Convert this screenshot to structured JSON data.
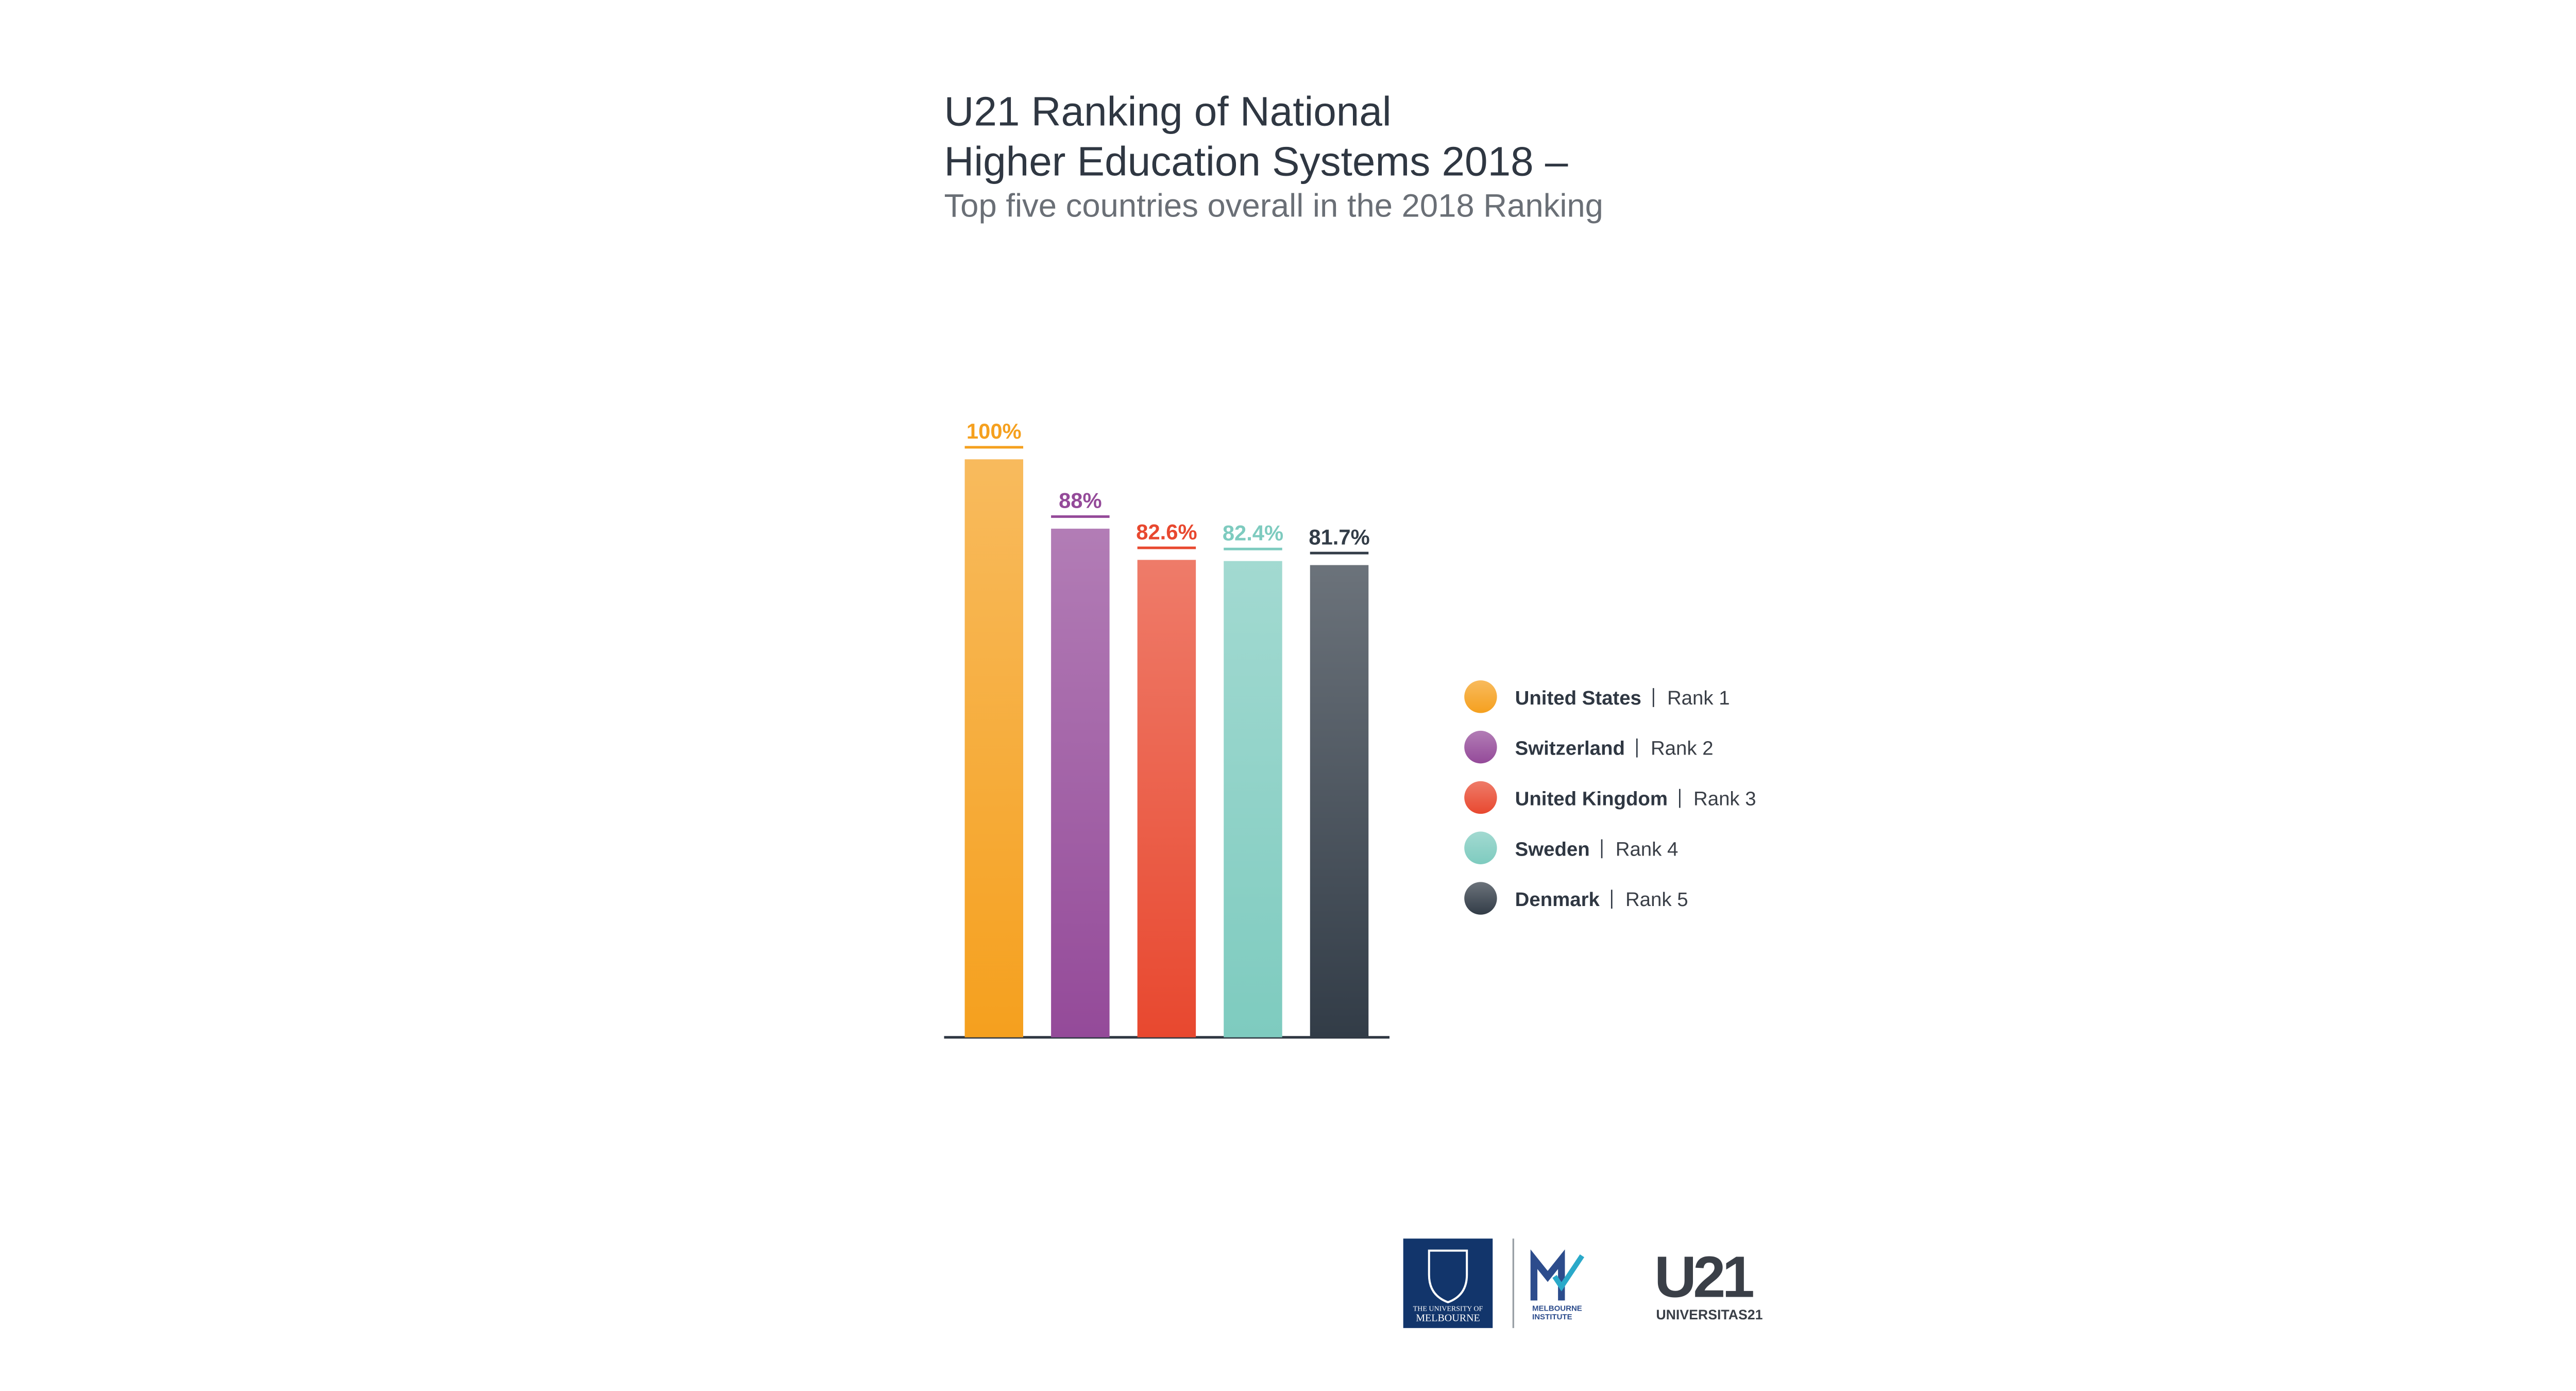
{
  "chart_data": {
    "type": "bar",
    "title": [
      "U21 Ranking of National",
      "Higher Education Systems 2018 –"
    ],
    "subtitle": "Top five countries overall in the 2018 Ranking",
    "categories": [
      "United States",
      "Switzerland",
      "United Kingdom",
      "Sweden",
      "Denmark"
    ],
    "ranks": [
      "Rank 1",
      "Rank 2",
      "Rank 3",
      "Rank 4",
      "Rank 5"
    ],
    "values": [
      100,
      88,
      82.6,
      82.4,
      81.7
    ],
    "value_labels": [
      "100%",
      "88%",
      "82.6%",
      "82.4%",
      "81.7%"
    ],
    "colors": [
      "#f5a01e",
      "#944a99",
      "#e8482f",
      "#7ecbbf",
      "#323c47"
    ],
    "ylim": [
      0,
      100
    ]
  },
  "logos": {
    "melbourne": [
      "THE UNIVERSITY OF",
      "MELBOURNE"
    ],
    "institute": [
      "MELBOURNE",
      "INSTITUTE"
    ],
    "u21": [
      "U21",
      "UNIVERSITAS21"
    ]
  }
}
